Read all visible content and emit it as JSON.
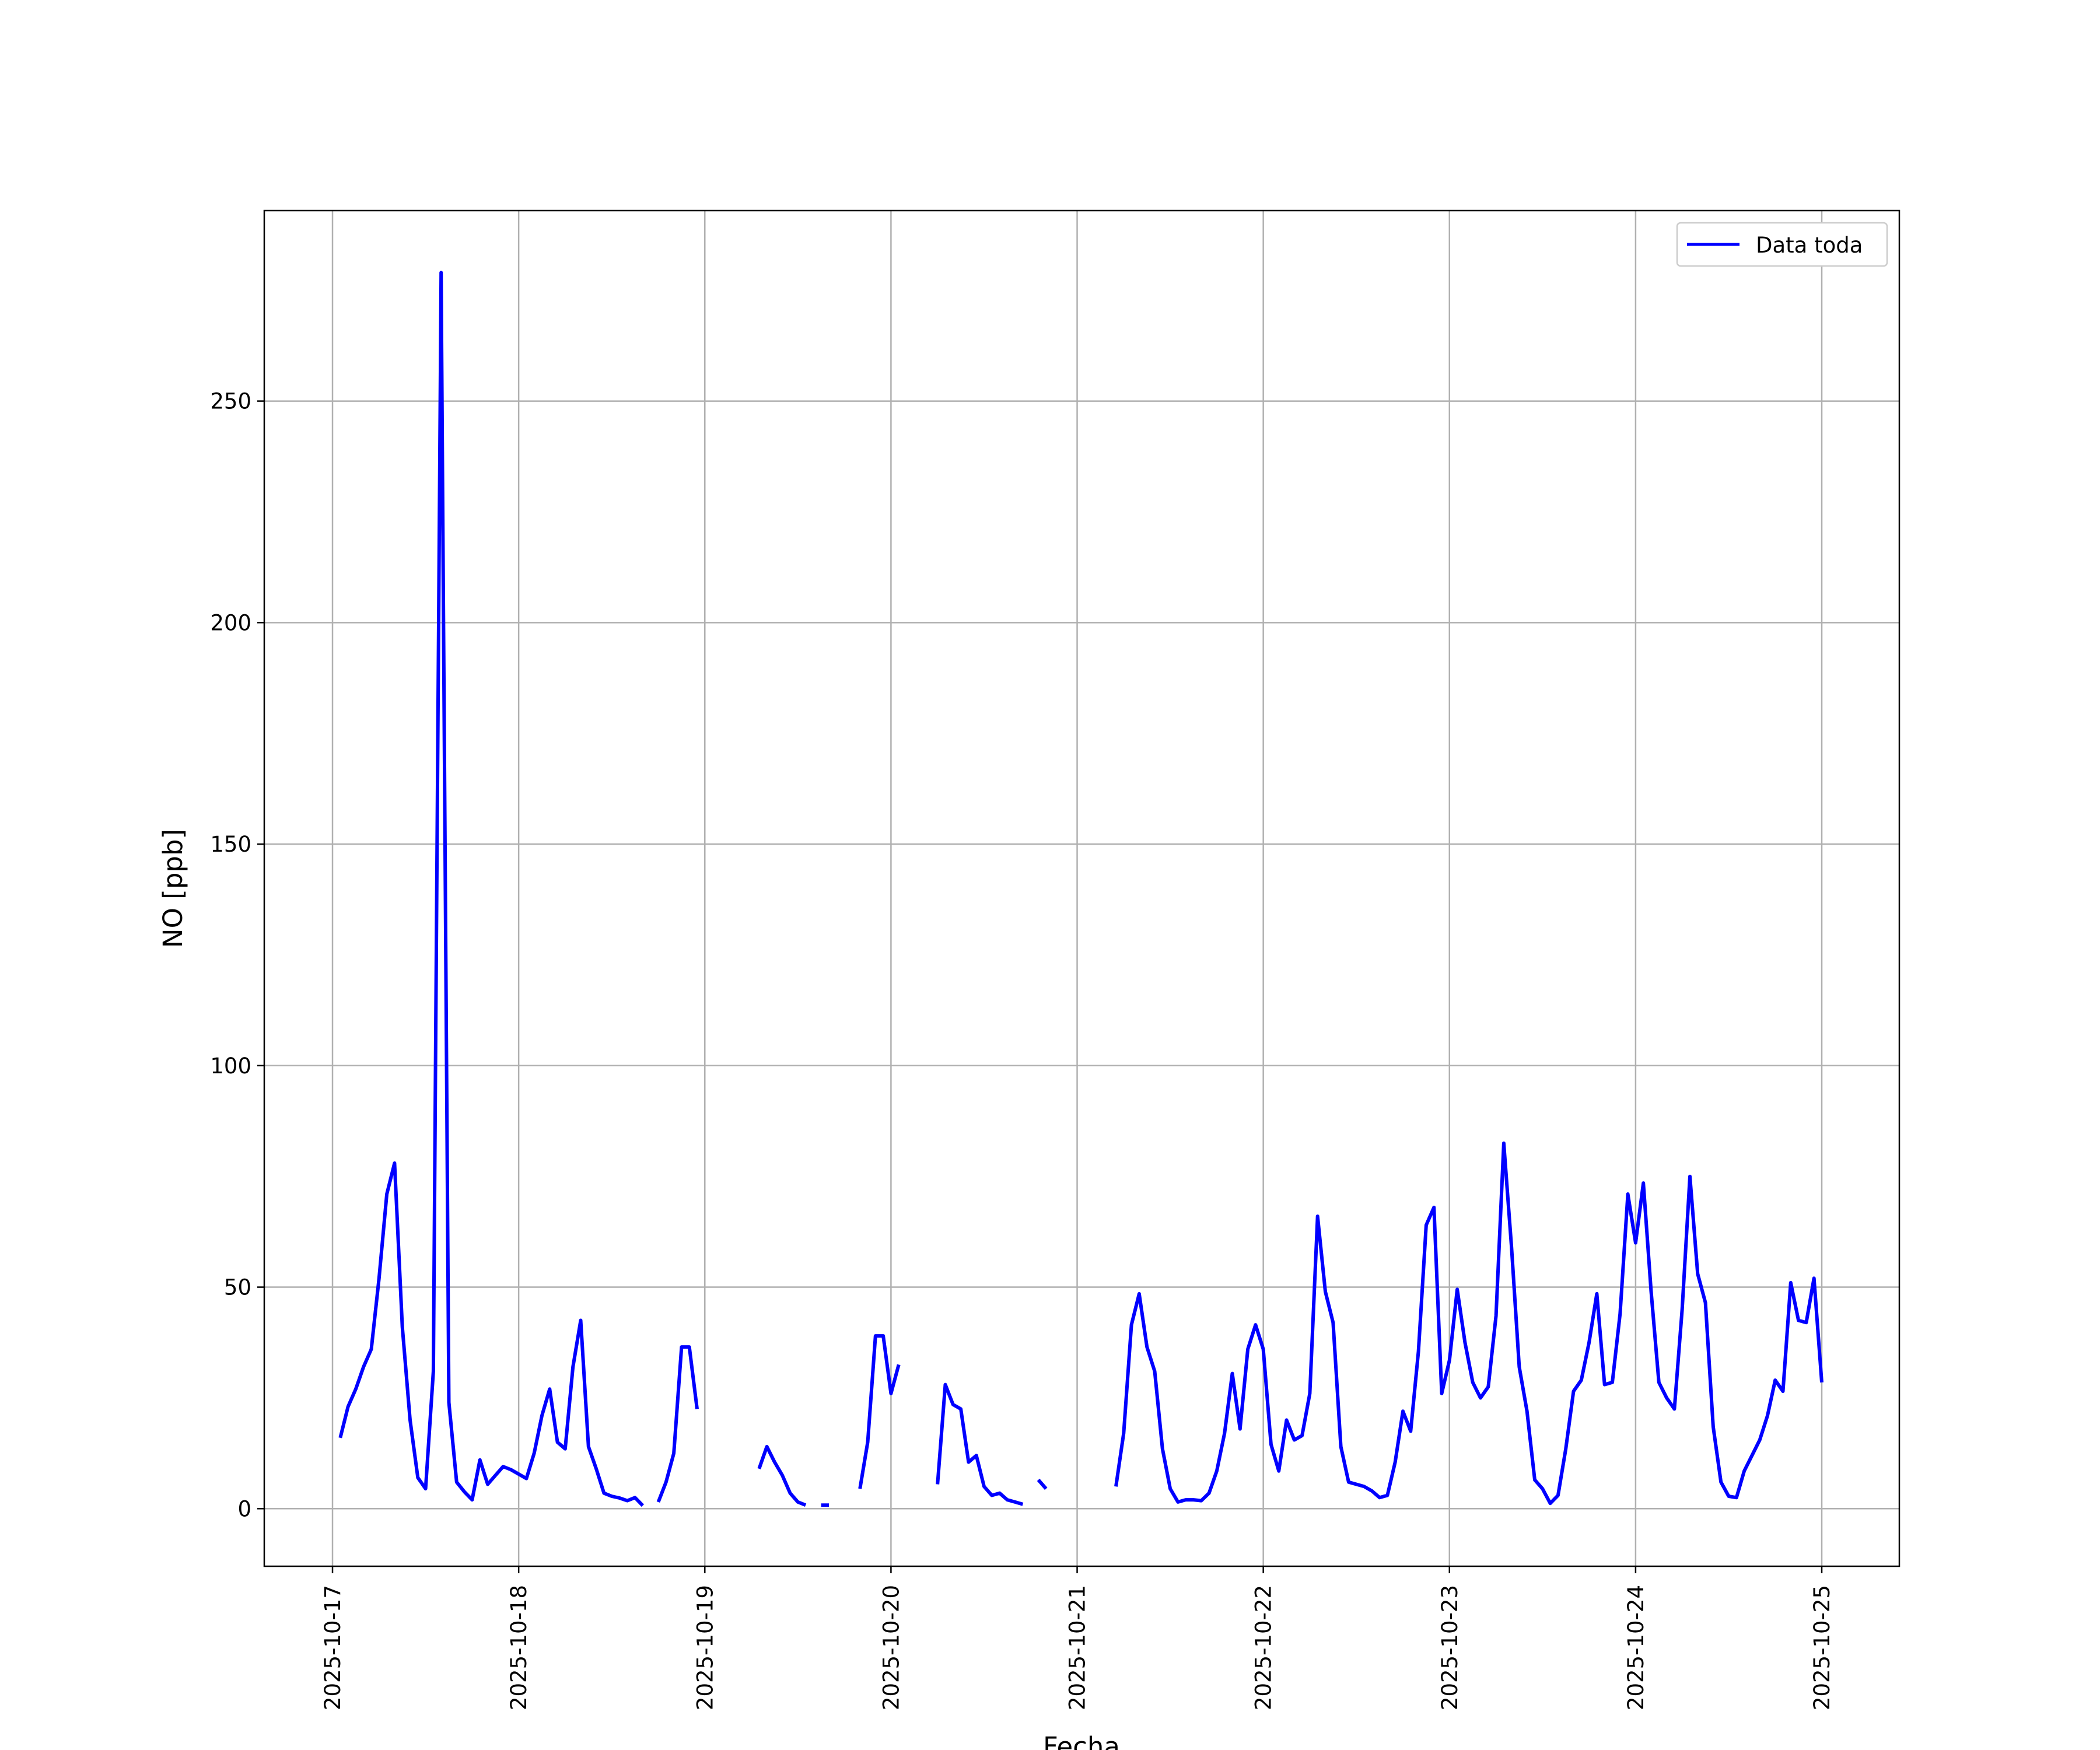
{
  "chart_data": {
    "type": "line",
    "title": "",
    "xlabel": "Fecha",
    "ylabel": "NO [ppb]",
    "x_type": "datetime",
    "x_ticks": [
      "2025-10-17",
      "2025-10-18",
      "2025-10-19",
      "2025-10-20",
      "2025-10-21",
      "2025-10-22",
      "2025-10-23",
      "2025-10-24",
      "2025-10-25"
    ],
    "y_ticks": [
      "0",
      "50",
      "100",
      "150",
      "200",
      "250"
    ],
    "xlim": [
      "2025-10-16 15:12",
      "2025-10-25 10:00"
    ],
    "ylim": [
      -13,
      293
    ],
    "grid": true,
    "legend": {
      "position": "top-right",
      "entries": [
        "Data toda"
      ]
    },
    "colors": {
      "series": "#0000ff",
      "grid": "#b0b0b0",
      "axes": "#000000",
      "background": "#ffffff"
    },
    "series": [
      {
        "name": "Data toda",
        "points": [
          [
            "2025-10-17 01:00",
            16
          ],
          [
            "2025-10-17 02:00",
            23
          ],
          [
            "2025-10-17 03:00",
            27
          ],
          [
            "2025-10-17 04:00",
            32
          ],
          [
            "2025-10-17 05:00",
            36
          ],
          [
            "2025-10-17 06:00",
            52
          ],
          [
            "2025-10-17 07:00",
            71
          ],
          [
            "2025-10-17 08:00",
            78
          ],
          [
            "2025-10-17 09:00",
            41
          ],
          [
            "2025-10-17 10:00",
            20
          ],
          [
            "2025-10-17 11:00",
            7
          ],
          [
            "2025-10-17 12:00",
            4.5
          ],
          [
            "2025-10-17 13:00",
            31
          ],
          [
            "2025-10-17 14:00",
            279
          ],
          [
            "2025-10-17 15:00",
            24
          ],
          [
            "2025-10-17 16:00",
            6
          ],
          [
            "2025-10-17 17:00",
            3.8
          ],
          [
            "2025-10-17 18:00",
            2
          ],
          [
            "2025-10-17 19:00",
            11
          ],
          [
            "2025-10-17 20:00",
            5.5
          ],
          [
            "2025-10-17 21:00",
            7.5
          ],
          [
            "2025-10-17 22:00",
            9.5
          ],
          [
            "2025-10-17 23:00",
            8.8
          ],
          [
            "2025-10-18 00:00",
            7.8
          ],
          [
            "2025-10-18 01:00",
            6.8
          ],
          [
            "2025-10-18 02:00",
            12.5
          ],
          [
            "2025-10-18 03:00",
            21
          ],
          [
            "2025-10-18 04:00",
            27
          ],
          [
            "2025-10-18 05:00",
            15
          ],
          [
            "2025-10-18 06:00",
            13.5
          ],
          [
            "2025-10-18 07:00",
            32
          ],
          [
            "2025-10-18 08:00",
            42.5
          ],
          [
            "2025-10-18 09:00",
            14
          ],
          [
            "2025-10-18 10:00",
            9
          ],
          [
            "2025-10-18 11:00",
            3.5
          ],
          [
            "2025-10-18 12:00",
            2.8
          ],
          [
            "2025-10-18 13:00",
            2.4
          ],
          [
            "2025-10-18 14:00",
            1.8
          ],
          [
            "2025-10-18 15:00",
            2.5
          ],
          [
            "2025-10-18 16:00",
            0.7
          ],
          [
            "2025-10-18 17:00",
            null
          ],
          [
            "2025-10-18 18:00",
            1.5
          ],
          [
            "2025-10-18 19:00",
            6
          ],
          [
            "2025-10-18 20:00",
            12.5
          ],
          [
            "2025-10-18 21:00",
            36.5
          ],
          [
            "2025-10-18 22:00",
            36.5
          ],
          [
            "2025-10-18 23:00",
            22.5
          ],
          [
            "2025-10-19 00:00",
            null
          ],
          [
            "2025-10-19 07:00",
            9
          ],
          [
            "2025-10-19 08:00",
            14
          ],
          [
            "2025-10-19 09:00",
            10.5
          ],
          [
            "2025-10-19 10:00",
            7.5
          ],
          [
            "2025-10-19 11:00",
            3.5
          ],
          [
            "2025-10-19 12:00",
            1.5
          ],
          [
            "2025-10-19 13:00",
            0.8
          ],
          [
            "2025-10-19 14:00",
            null
          ],
          [
            "2025-10-19 15:00",
            0.8
          ],
          [
            "2025-10-19 16:00",
            0.8
          ],
          [
            "2025-10-19 17:00",
            null
          ],
          [
            "2025-10-19 20:00",
            4.5
          ],
          [
            "2025-10-19 21:00",
            15
          ],
          [
            "2025-10-19 22:00",
            39
          ],
          [
            "2025-10-19 23:00",
            39
          ],
          [
            "2025-10-20 00:00",
            26
          ],
          [
            "2025-10-20 01:00",
            32.5
          ],
          [
            "2025-10-20 02:00",
            null
          ],
          [
            "2025-10-20 06:00",
            5.5
          ],
          [
            "2025-10-20 07:00",
            28
          ],
          [
            "2025-10-20 08:00",
            23.5
          ],
          [
            "2025-10-20 09:00",
            22.5
          ],
          [
            "2025-10-20 10:00",
            10.5
          ],
          [
            "2025-10-20 11:00",
            12
          ],
          [
            "2025-10-20 12:00",
            5
          ],
          [
            "2025-10-20 13:00",
            3
          ],
          [
            "2025-10-20 14:00",
            3.5
          ],
          [
            "2025-10-20 15:00",
            2
          ],
          [
            "2025-10-20 16:00",
            1.5
          ],
          [
            "2025-10-20 17:00",
            1
          ],
          [
            "2025-10-20 18:00",
            null
          ],
          [
            "2025-10-20 19:00",
            6.5
          ],
          [
            "2025-10-20 20:00",
            4.5
          ],
          [
            "2025-10-20 21:00",
            null
          ],
          [
            "2025-10-21 05:00",
            5
          ],
          [
            "2025-10-21 06:00",
            17
          ],
          [
            "2025-10-21 07:00",
            41.5
          ],
          [
            "2025-10-21 08:00",
            48.5
          ],
          [
            "2025-10-21 09:00",
            36.5
          ],
          [
            "2025-10-21 10:00",
            31
          ],
          [
            "2025-10-21 11:00",
            13.5
          ],
          [
            "2025-10-21 12:00",
            4.5
          ],
          [
            "2025-10-21 13:00",
            1.5
          ],
          [
            "2025-10-21 14:00",
            2
          ],
          [
            "2025-10-21 15:00",
            2
          ],
          [
            "2025-10-21 16:00",
            1.8
          ],
          [
            "2025-10-21 17:00",
            3.5
          ],
          [
            "2025-10-21 18:00",
            8.5
          ],
          [
            "2025-10-21 19:00",
            17
          ],
          [
            "2025-10-21 20:00",
            30.5
          ],
          [
            "2025-10-21 21:00",
            18
          ],
          [
            "2025-10-21 22:00",
            36
          ],
          [
            "2025-10-21 23:00",
            41.5
          ],
          [
            "2025-10-22 00:00",
            36
          ],
          [
            "2025-10-22 01:00",
            14.5
          ],
          [
            "2025-10-22 02:00",
            8.5
          ],
          [
            "2025-10-22 03:00",
            20
          ],
          [
            "2025-10-22 04:00",
            15.5
          ],
          [
            "2025-10-22 05:00",
            16.5
          ],
          [
            "2025-10-22 06:00",
            26
          ],
          [
            "2025-10-22 07:00",
            66
          ],
          [
            "2025-10-22 08:00",
            49
          ],
          [
            "2025-10-22 09:00",
            42
          ],
          [
            "2025-10-22 10:00",
            14
          ],
          [
            "2025-10-22 11:00",
            6
          ],
          [
            "2025-10-22 12:00",
            5.5
          ],
          [
            "2025-10-22 13:00",
            5
          ],
          [
            "2025-10-22 14:00",
            4
          ],
          [
            "2025-10-22 15:00",
            2.5
          ],
          [
            "2025-10-22 16:00",
            3
          ],
          [
            "2025-10-22 17:00",
            10.5
          ],
          [
            "2025-10-22 18:00",
            22
          ],
          [
            "2025-10-22 19:00",
            17.5
          ],
          [
            "2025-10-22 20:00",
            35.5
          ],
          [
            "2025-10-22 21:00",
            64
          ],
          [
            "2025-10-22 22:00",
            68
          ],
          [
            "2025-10-22 23:00",
            26
          ],
          [
            "2025-10-23 00:00",
            33.5
          ],
          [
            "2025-10-23 01:00",
            49.5
          ],
          [
            "2025-10-23 02:00",
            37.5
          ],
          [
            "2025-10-23 03:00",
            28.5
          ],
          [
            "2025-10-23 04:00",
            25
          ],
          [
            "2025-10-23 05:00",
            27.5
          ],
          [
            "2025-10-23 06:00",
            43.5
          ],
          [
            "2025-10-23 07:00",
            82.5
          ],
          [
            "2025-10-23 08:00",
            59
          ],
          [
            "2025-10-23 09:00",
            32
          ],
          [
            "2025-10-23 10:00",
            22
          ],
          [
            "2025-10-23 11:00",
            6.5
          ],
          [
            "2025-10-23 12:00",
            4.5
          ],
          [
            "2025-10-23 13:00",
            1.2
          ],
          [
            "2025-10-23 14:00",
            3
          ],
          [
            "2025-10-23 15:00",
            13.5
          ],
          [
            "2025-10-23 16:00",
            26.5
          ],
          [
            "2025-10-23 17:00",
            29
          ],
          [
            "2025-10-23 18:00",
            37.5
          ],
          [
            "2025-10-23 19:00",
            48.5
          ],
          [
            "2025-10-23 20:00",
            28
          ],
          [
            "2025-10-23 21:00",
            28.5
          ],
          [
            "2025-10-23 22:00",
            44
          ],
          [
            "2025-10-23 23:00",
            71
          ],
          [
            "2025-10-24 00:00",
            60
          ],
          [
            "2025-10-24 01:00",
            73.5
          ],
          [
            "2025-10-24 02:00",
            49
          ],
          [
            "2025-10-24 03:00",
            28.5
          ],
          [
            "2025-10-24 04:00",
            25
          ],
          [
            "2025-10-24 05:00",
            22.5
          ],
          [
            "2025-10-24 06:00",
            45
          ],
          [
            "2025-10-24 07:00",
            75
          ],
          [
            "2025-10-24 08:00",
            53
          ],
          [
            "2025-10-24 09:00",
            46.5
          ],
          [
            "2025-10-24 10:00",
            18.5
          ],
          [
            "2025-10-24 11:00",
            6
          ],
          [
            "2025-10-24 12:00",
            2.8
          ],
          [
            "2025-10-24 13:00",
            2.5
          ],
          [
            "2025-10-24 14:00",
            8.5
          ],
          [
            "2025-10-24 15:00",
            12
          ],
          [
            "2025-10-24 16:00",
            15.5
          ],
          [
            "2025-10-24 17:00",
            21
          ],
          [
            "2025-10-24 18:00",
            29
          ],
          [
            "2025-10-24 19:00",
            26.5
          ],
          [
            "2025-10-24 20:00",
            51
          ],
          [
            "2025-10-24 21:00",
            42.5
          ],
          [
            "2025-10-24 22:00",
            42
          ],
          [
            "2025-10-24 23:00",
            52
          ],
          [
            "2025-10-25 00:00",
            28.5
          ]
        ]
      }
    ]
  }
}
